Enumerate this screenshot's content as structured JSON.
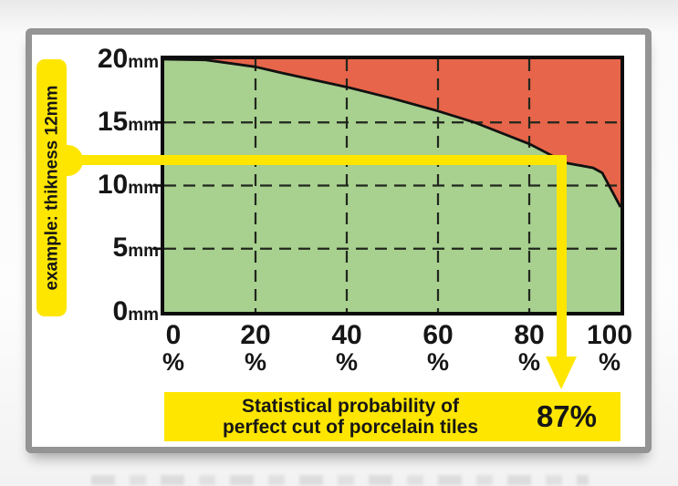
{
  "axes": {
    "y_labels": [
      {
        "num": "20",
        "unit": "mm"
      },
      {
        "num": "15",
        "unit": "mm"
      },
      {
        "num": "10",
        "unit": "mm"
      },
      {
        "num": "5",
        "unit": "mm"
      },
      {
        "num": "0",
        "unit": "mm"
      }
    ],
    "x_labels": [
      {
        "num": "0",
        "unit": "%"
      },
      {
        "num": "20",
        "unit": "%"
      },
      {
        "num": "40",
        "unit": "%"
      },
      {
        "num": "60",
        "unit": "%"
      },
      {
        "num": "80",
        "unit": "%"
      },
      {
        "num": "100",
        "unit": "%"
      }
    ]
  },
  "example_label": "example: thikness 12mm",
  "result_box": {
    "line1": "Statistical probability of",
    "line2": "perfect cut of porcelain tiles",
    "value": "87%"
  },
  "colors": {
    "yellow": "#ffe600",
    "green_area": "#a8d08f",
    "red_area": "#e7654a",
    "frame_gray": "#949494",
    "ink": "#161616"
  },
  "chart_data": {
    "type": "area",
    "x_unit": "%",
    "y_unit": "mm",
    "xlim": [
      0,
      100
    ],
    "ylim": [
      0,
      20
    ],
    "x_ticks": [
      0,
      20,
      40,
      60,
      80,
      100
    ],
    "y_ticks": [
      0,
      5,
      10,
      15,
      20
    ],
    "grid": "dashed",
    "series": [
      {
        "name": "boundary",
        "points": [
          [
            0,
            20
          ],
          [
            9,
            19.95
          ],
          [
            20,
            19.4
          ],
          [
            26,
            18.9
          ],
          [
            40,
            17.8
          ],
          [
            50,
            16.9
          ],
          [
            60,
            15.9
          ],
          [
            68,
            15.0
          ],
          [
            80,
            13.3
          ],
          [
            88,
            11.8
          ],
          [
            94,
            11.4
          ],
          [
            96,
            11.0
          ],
          [
            100,
            8.3
          ]
        ]
      }
    ],
    "area_below_color": "#a8d08f",
    "area_above_color": "#e7654a",
    "annotation": {
      "thickness_mm": 12,
      "probability_pct": 87
    }
  }
}
